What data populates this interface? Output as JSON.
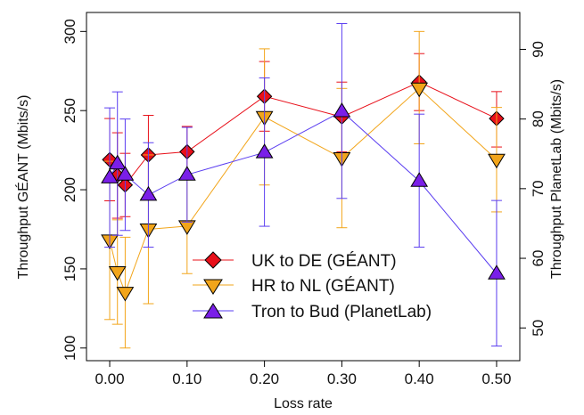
{
  "chart_data": {
    "type": "line",
    "xlabel": "Loss rate",
    "ylabel_left": "Throughput GÉANT (Mbits/s)",
    "ylabel_right": "Throughput PlanetLab (Mbits/s)",
    "xlim": [
      -0.03,
      0.53
    ],
    "ylim_left": [
      92,
      312
    ],
    "ylim_right": [
      45.3,
      95.3
    ],
    "x_ticks": [
      {
        "value": 0.0,
        "label": "0.00"
      },
      {
        "value": 0.1,
        "label": "0.10"
      },
      {
        "value": 0.2,
        "label": "0.20"
      },
      {
        "value": 0.3,
        "label": "0.30"
      },
      {
        "value": 0.4,
        "label": "0.40"
      },
      {
        "value": 0.5,
        "label": "0.50"
      }
    ],
    "y_left_ticks": [
      {
        "value": 100,
        "label": "100"
      },
      {
        "value": 150,
        "label": "150"
      },
      {
        "value": 200,
        "label": "200"
      },
      {
        "value": 250,
        "label": "250"
      },
      {
        "value": 300,
        "label": "300"
      }
    ],
    "y_right_ticks": [
      {
        "value": 50,
        "label": "50"
      },
      {
        "value": 60,
        "label": "60"
      },
      {
        "value": 70,
        "label": "70"
      },
      {
        "value": 80,
        "label": "80"
      },
      {
        "value": 90,
        "label": "90"
      }
    ],
    "grid": false,
    "legend_position": "bottom-right",
    "series": [
      {
        "name": "UK to DE (GÉANT)",
        "axis": "left",
        "marker": "diamond",
        "color": "#e8101a",
        "line_color": "#e8101a",
        "points": [
          {
            "x": 0.0,
            "y": 219,
            "err": [
              193,
              245
            ]
          },
          {
            "x": 0.01,
            "y": 209,
            "err": [
              182,
              236
            ]
          },
          {
            "x": 0.02,
            "y": 203,
            "err": [
              183,
              223
            ]
          },
          {
            "x": 0.05,
            "y": 222,
            "err": [
              197,
              247
            ]
          },
          {
            "x": 0.1,
            "y": 224,
            "err": [
              208,
              240
            ]
          },
          {
            "x": 0.2,
            "y": 259,
            "err": [
              237,
              281
            ]
          },
          {
            "x": 0.3,
            "y": 246,
            "err": [
              224,
              268
            ]
          },
          {
            "x": 0.4,
            "y": 268,
            "err": [
              250,
              286
            ]
          },
          {
            "x": 0.5,
            "y": 245,
            "err": [
              227,
              262
            ]
          }
        ]
      },
      {
        "name": "HR to NL (GÉANT)",
        "axis": "left",
        "marker": "triangle-down",
        "color": "#f2a51a",
        "line_color": "#f2a51a",
        "points": [
          {
            "x": 0.0,
            "y": 168,
            "err": [
              118,
              218
            ]
          },
          {
            "x": 0.01,
            "y": 148,
            "err": [
              115,
              181
            ]
          },
          {
            "x": 0.02,
            "y": 135,
            "err": [
              100,
              170
            ]
          },
          {
            "x": 0.05,
            "y": 175,
            "err": [
              128,
              222
            ]
          },
          {
            "x": 0.1,
            "y": 177,
            "err": [
              147,
              207
            ]
          },
          {
            "x": 0.2,
            "y": 246,
            "err": [
              203,
              289
            ]
          },
          {
            "x": 0.3,
            "y": 220,
            "err": [
              176,
              264
            ]
          },
          {
            "x": 0.4,
            "y": 264,
            "err": [
              229,
              300
            ]
          },
          {
            "x": 0.5,
            "y": 219,
            "err": [
              186,
              252
            ]
          }
        ]
      },
      {
        "name": "Tron to Bud (PlanetLab)",
        "axis": "right",
        "marker": "triangle-up",
        "color": "#7a1fe8",
        "line_color": "#5a3df0",
        "points": [
          {
            "x": 0.0,
            "y": 71.6,
            "err": [
              61.6,
              81.6
            ]
          },
          {
            "x": 0.01,
            "y": 73.6,
            "err": [
              63.3,
              83.9
            ]
          },
          {
            "x": 0.02,
            "y": 72.0,
            "err": [
              64.0,
              80.0
            ]
          },
          {
            "x": 0.05,
            "y": 69.1,
            "err": [
              61.6,
              76.6
            ]
          },
          {
            "x": 0.1,
            "y": 72.0,
            "err": [
              65.2,
              78.8
            ]
          },
          {
            "x": 0.2,
            "y": 75.2,
            "err": [
              64.6,
              85.9
            ]
          },
          {
            "x": 0.3,
            "y": 81.1,
            "err": [
              68.6,
              93.7
            ]
          },
          {
            "x": 0.4,
            "y": 71.1,
            "err": [
              61.6,
              80.7
            ]
          },
          {
            "x": 0.5,
            "y": 57.8,
            "err": [
              47.4,
              68.3
            ]
          }
        ]
      }
    ]
  }
}
